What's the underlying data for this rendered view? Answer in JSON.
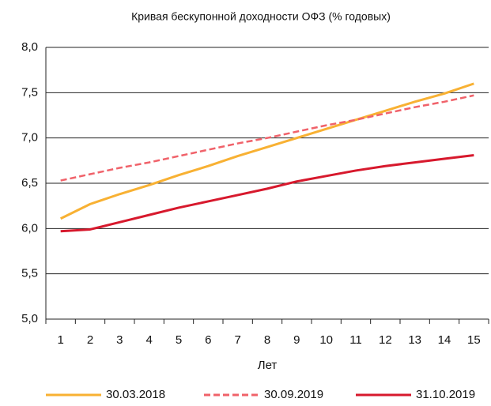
{
  "chart_data": {
    "type": "line",
    "title": "Кривая бескупонной доходности ОФЗ (% годовых)",
    "x_label": "Лет",
    "categories": [
      1,
      2,
      3,
      4,
      5,
      6,
      7,
      8,
      9,
      10,
      11,
      12,
      13,
      14,
      15
    ],
    "series": [
      {
        "name": "30.03.2018",
        "color": "#f8b133",
        "style": "solid",
        "values": [
          6.11,
          6.27,
          6.38,
          6.48,
          6.59,
          6.69,
          6.8,
          6.9,
          7.0,
          7.1,
          7.2,
          7.3,
          7.4,
          7.49,
          7.6
        ]
      },
      {
        "name": "30.09.2019",
        "color": "#f0626a",
        "style": "dashed",
        "values": [
          6.53,
          6.6,
          6.67,
          6.73,
          6.8,
          6.87,
          6.94,
          7.0,
          7.07,
          7.14,
          7.2,
          7.27,
          7.34,
          7.4,
          7.47
        ]
      },
      {
        "name": "31.10.2019",
        "color": "#d7192d",
        "style": "solid",
        "values": [
          5.97,
          5.99,
          6.07,
          6.15,
          6.23,
          6.3,
          6.37,
          6.44,
          6.52,
          6.58,
          6.64,
          6.69,
          6.73,
          6.77,
          6.81
        ]
      }
    ],
    "ylim": [
      5,
      8
    ],
    "yticks": [
      {
        "value": 5,
        "label": "5,0"
      },
      {
        "value": 5.5,
        "label": "5,5"
      },
      {
        "value": 6,
        "label": "6,0"
      },
      {
        "value": 6.5,
        "label": "6,5"
      },
      {
        "value": 7,
        "label": "7,0"
      },
      {
        "value": 7.5,
        "label": "7,5"
      },
      {
        "value": 8,
        "label": "8,0"
      }
    ],
    "grid": true
  }
}
